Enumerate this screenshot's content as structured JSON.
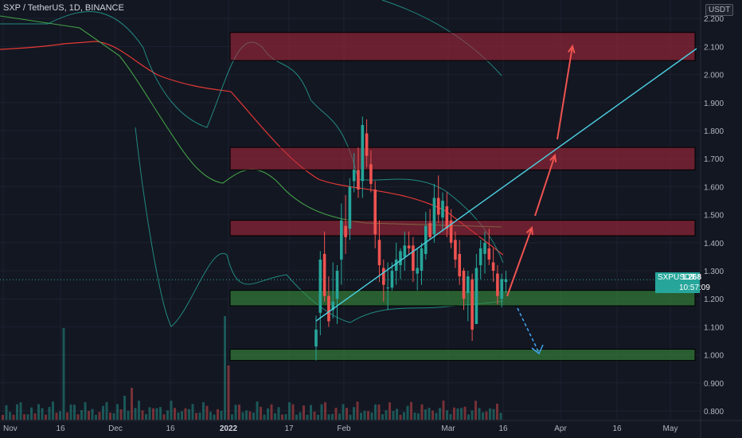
{
  "header": {
    "title": "SXP / TetherUS, 1D, BINANCE",
    "unit": "USDT"
  },
  "price_badge": {
    "symbol": "SXPUSDT",
    "price": "1.268",
    "countdown": "10:57:09"
  },
  "chart_data": {
    "type": "candlestick",
    "title": "SXP / TetherUS, 1D, BINANCE",
    "y_unit": "USDT",
    "ylim": [
      0.76,
      2.22
    ],
    "y_ticks": [
      "2.200",
      "2.100",
      "2.000",
      "1.900",
      "1.800",
      "1.700",
      "1.600",
      "1.500",
      "1.400",
      "1.300",
      "1.200",
      "1.100",
      "1.000",
      "0.900",
      "0.800"
    ],
    "x_ticks": [
      "Nov",
      "16",
      "Dec",
      "16",
      "2022",
      "17",
      "Feb",
      "Mar",
      "16",
      "Apr",
      "16",
      "May"
    ],
    "current_price": 1.268,
    "candles": [
      [
        1.03,
        1.14,
        0.98,
        1.09
      ],
      [
        1.15,
        1.37,
        1.07,
        1.34
      ],
      [
        1.36,
        1.44,
        1.19,
        1.21
      ],
      [
        1.21,
        1.28,
        1.1,
        1.12
      ],
      [
        1.16,
        1.33,
        1.13,
        1.19
      ],
      [
        1.2,
        1.32,
        1.11,
        1.3
      ],
      [
        1.34,
        1.54,
        1.25,
        1.48
      ],
      [
        1.46,
        1.57,
        1.36,
        1.42
      ],
      [
        1.45,
        1.63,
        1.41,
        1.6
      ],
      [
        1.62,
        1.72,
        1.58,
        1.66
      ],
      [
        1.66,
        1.74,
        1.56,
        1.59
      ],
      [
        1.62,
        1.85,
        1.56,
        1.82
      ],
      [
        1.79,
        1.84,
        1.67,
        1.71
      ],
      [
        1.68,
        1.73,
        1.58,
        1.61
      ],
      [
        1.59,
        1.62,
        1.38,
        1.43
      ],
      [
        1.41,
        1.48,
        1.26,
        1.32
      ],
      [
        1.31,
        1.34,
        1.19,
        1.25
      ],
      [
        1.24,
        1.33,
        1.16,
        1.24
      ],
      [
        1.24,
        1.33,
        1.23,
        1.3
      ],
      [
        1.3,
        1.4,
        1.25,
        1.34
      ],
      [
        1.32,
        1.38,
        1.27,
        1.37
      ],
      [
        1.35,
        1.44,
        1.3,
        1.39
      ],
      [
        1.39,
        1.44,
        1.36,
        1.38
      ],
      [
        1.39,
        1.42,
        1.26,
        1.3
      ],
      [
        1.29,
        1.38,
        1.23,
        1.31
      ],
      [
        1.3,
        1.4,
        1.25,
        1.38
      ],
      [
        1.36,
        1.51,
        1.34,
        1.46
      ],
      [
        1.47,
        1.52,
        1.41,
        1.42
      ],
      [
        1.43,
        1.61,
        1.4,
        1.56
      ],
      [
        1.56,
        1.64,
        1.47,
        1.5
      ],
      [
        1.49,
        1.58,
        1.44,
        1.55
      ],
      [
        1.53,
        1.58,
        1.42,
        1.45
      ],
      [
        1.48,
        1.52,
        1.38,
        1.4
      ],
      [
        1.41,
        1.44,
        1.31,
        1.34
      ],
      [
        1.36,
        1.41,
        1.25,
        1.28
      ],
      [
        1.3,
        1.31,
        1.16,
        1.2
      ],
      [
        1.22,
        1.3,
        1.12,
        1.28
      ],
      [
        1.27,
        1.29,
        1.05,
        1.09
      ],
      [
        1.11,
        1.36,
        1.11,
        1.31
      ],
      [
        1.32,
        1.41,
        1.27,
        1.38
      ],
      [
        1.36,
        1.44,
        1.29,
        1.4
      ],
      [
        1.38,
        1.45,
        1.32,
        1.34
      ],
      [
        1.33,
        1.38,
        1.26,
        1.3
      ],
      [
        1.29,
        1.32,
        1.18,
        1.21
      ],
      [
        1.2,
        1.29,
        1.17,
        1.27
      ],
      [
        1.26,
        1.3,
        1.22,
        1.27
      ]
    ],
    "levels_usdt": {
      "resistance_zones": [
        [
          2.05,
          2.15
        ],
        [
          1.66,
          1.74
        ],
        [
          1.425,
          1.48
        ]
      ],
      "support_zones": [
        [
          1.175,
          1.23
        ],
        [
          0.98,
          1.02
        ]
      ]
    },
    "trendline": {
      "from": [
        "2022-01-21",
        1.12
      ],
      "to": [
        "2022-05-12",
        2.08
      ]
    },
    "projection": {
      "up_targets": [
        1.44,
        1.72,
        2.1
      ],
      "down_target": 1.0
    },
    "volume_scale": "relative"
  }
}
